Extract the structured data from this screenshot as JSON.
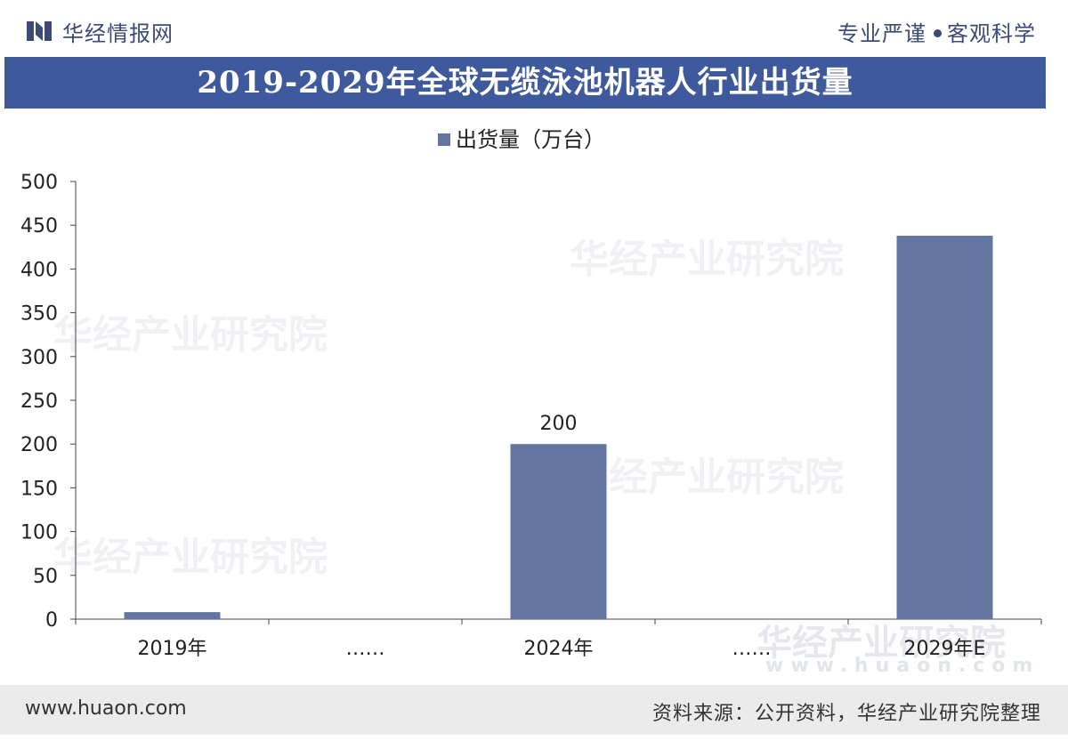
{
  "header": {
    "logo_text": "华经情报网",
    "slogan_left": "专业严谨",
    "slogan_right": "客观科学"
  },
  "title": "2019-2029年全球无缆泳池机器人行业出货量",
  "colors": {
    "bar": "#6475a0",
    "title_bg": "#3f5a9c",
    "brand": "#3c4a78"
  },
  "watermark": {
    "text": "华经产业研究院",
    "url": "www.huaon.com"
  },
  "footer": {
    "url": "www.huaon.com",
    "source": "资料来源：公开资料，华经产业研究院整理"
  },
  "chart_data": {
    "type": "bar",
    "categories": [
      "2019年",
      "……",
      "2024年",
      "……",
      "2029年E"
    ],
    "series": [
      {
        "name": "出货量（万台）",
        "values": [
          8,
          null,
          200,
          null,
          438
        ]
      }
    ],
    "data_labels": [
      "",
      "",
      "200",
      "",
      ""
    ],
    "yticks": [
      "0",
      "50",
      "100",
      "150",
      "200",
      "250",
      "300",
      "350",
      "400",
      "450",
      "500"
    ],
    "ylim": [
      0,
      500
    ],
    "legend_position": "top-center",
    "grid": false
  }
}
